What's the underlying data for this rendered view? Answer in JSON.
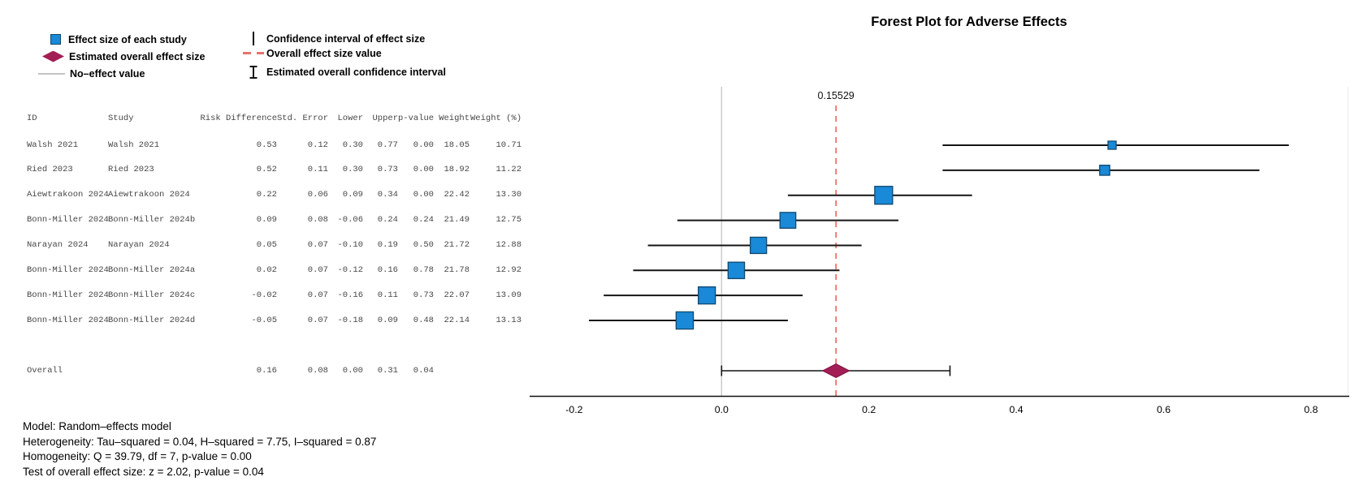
{
  "title": "Forest Plot for Adverse Effects",
  "legend": {
    "effect_square": "Effect size of each study",
    "overall_diamond": "Estimated overall effect size",
    "no_effect": "No–effect value",
    "ci": "Confidence interval of effect size",
    "overall_value": "Overall effect size value",
    "overall_ci": "Estimated overall confidence interval"
  },
  "table": {
    "headers": [
      "ID",
      "Study",
      "Risk Difference",
      "Std. Error",
      "Lower",
      "Upper",
      "p-value",
      "Weight",
      "Weight (%)"
    ],
    "rows": [
      [
        "Walsh 2021",
        "Walsh 2021",
        "0.53",
        "0.12",
        "0.30",
        "0.77",
        "0.00",
        "18.05",
        "10.71"
      ],
      [
        "Ried 2023",
        "Ried 2023",
        "0.52",
        "0.11",
        "0.30",
        "0.73",
        "0.00",
        "18.92",
        "11.22"
      ],
      [
        "Aiewtrakoon 2024",
        "Aiewtrakoon 2024",
        "0.22",
        "0.06",
        "0.09",
        "0.34",
        "0.00",
        "22.42",
        "13.30"
      ],
      [
        "Bonn-Miller 2024",
        "Bonn-Miller 2024b",
        "0.09",
        "0.08",
        "-0.06",
        "0.24",
        "0.24",
        "21.49",
        "12.75"
      ],
      [
        "Narayan 2024",
        "Narayan 2024",
        "0.05",
        "0.07",
        "-0.10",
        "0.19",
        "0.50",
        "21.72",
        "12.88"
      ],
      [
        "Bonn-Miller 2024",
        "Bonn-Miller 2024a",
        "0.02",
        "0.07",
        "-0.12",
        "0.16",
        "0.78",
        "21.78",
        "12.92"
      ],
      [
        "Bonn-Miller 2024",
        "Bonn-Miller 2024c",
        "-0.02",
        "0.07",
        "-0.16",
        "0.11",
        "0.73",
        "22.07",
        "13.09"
      ],
      [
        "Bonn-Miller 2024",
        "Bonn-Miller 2024d",
        "-0.05",
        "0.07",
        "-0.18",
        "0.09",
        "0.48",
        "22.14",
        "13.13"
      ]
    ],
    "overall": [
      "Overall",
      "",
      "0.16",
      "0.08",
      "0.00",
      "0.31",
      "0.04",
      "",
      ""
    ]
  },
  "chart_data": {
    "type": "forest",
    "title": "Forest Plot for Adverse Effects",
    "xlim": [
      -0.262,
      0.858
    ],
    "x_tick_values": [
      -0.2,
      0.0,
      0.2,
      0.4,
      0.6,
      0.8
    ],
    "x_ticks": [
      "-0.2",
      "0.0",
      "0.2",
      "0.4",
      "0.6",
      "0.8"
    ],
    "no_effect_value": 0.0,
    "overall_line_value": 0.15529,
    "overall_line_label": "0.15529",
    "studies": [
      {
        "label": "Walsh 2021",
        "estimate": 0.53,
        "lower": 0.3,
        "upper": 0.77,
        "weight_pct": 10.71
      },
      {
        "label": "Ried 2023",
        "estimate": 0.52,
        "lower": 0.3,
        "upper": 0.73,
        "weight_pct": 11.22
      },
      {
        "label": "Aiewtrakoon 2024",
        "estimate": 0.22,
        "lower": 0.09,
        "upper": 0.34,
        "weight_pct": 13.3
      },
      {
        "label": "Bonn-Miller 2024b",
        "estimate": 0.09,
        "lower": -0.06,
        "upper": 0.24,
        "weight_pct": 12.75
      },
      {
        "label": "Narayan 2024",
        "estimate": 0.05,
        "lower": -0.1,
        "upper": 0.19,
        "weight_pct": 12.88
      },
      {
        "label": "Bonn-Miller 2024a",
        "estimate": 0.02,
        "lower": -0.12,
        "upper": 0.16,
        "weight_pct": 12.92
      },
      {
        "label": "Bonn-Miller 2024c",
        "estimate": -0.02,
        "lower": -0.16,
        "upper": 0.11,
        "weight_pct": 13.09
      },
      {
        "label": "Bonn-Miller 2024d",
        "estimate": -0.05,
        "lower": -0.18,
        "upper": 0.09,
        "weight_pct": 13.13
      }
    ],
    "overall": {
      "estimate": 0.15529,
      "lower": 0.0,
      "upper": 0.31
    },
    "colors": {
      "square": "#1989D8",
      "square_border": "#10486E",
      "diamond": "#A41E56",
      "diamond_border": "#7A1140",
      "overall_line": "#EE7268",
      "no_effect_line": "#C9C9C9",
      "ci_line": "#141414",
      "axis": "#111111"
    }
  },
  "footnotes": [
    "Model: Random–effects model",
    "Heterogeneity: Tau–squared = 0.04, H–squared = 7.75, I–squared = 0.87",
    "Homogeneity: Q = 39.79, df = 7, p-value = 0.00",
    "Test of overall effect size: z = 2.02, p-value = 0.04"
  ]
}
